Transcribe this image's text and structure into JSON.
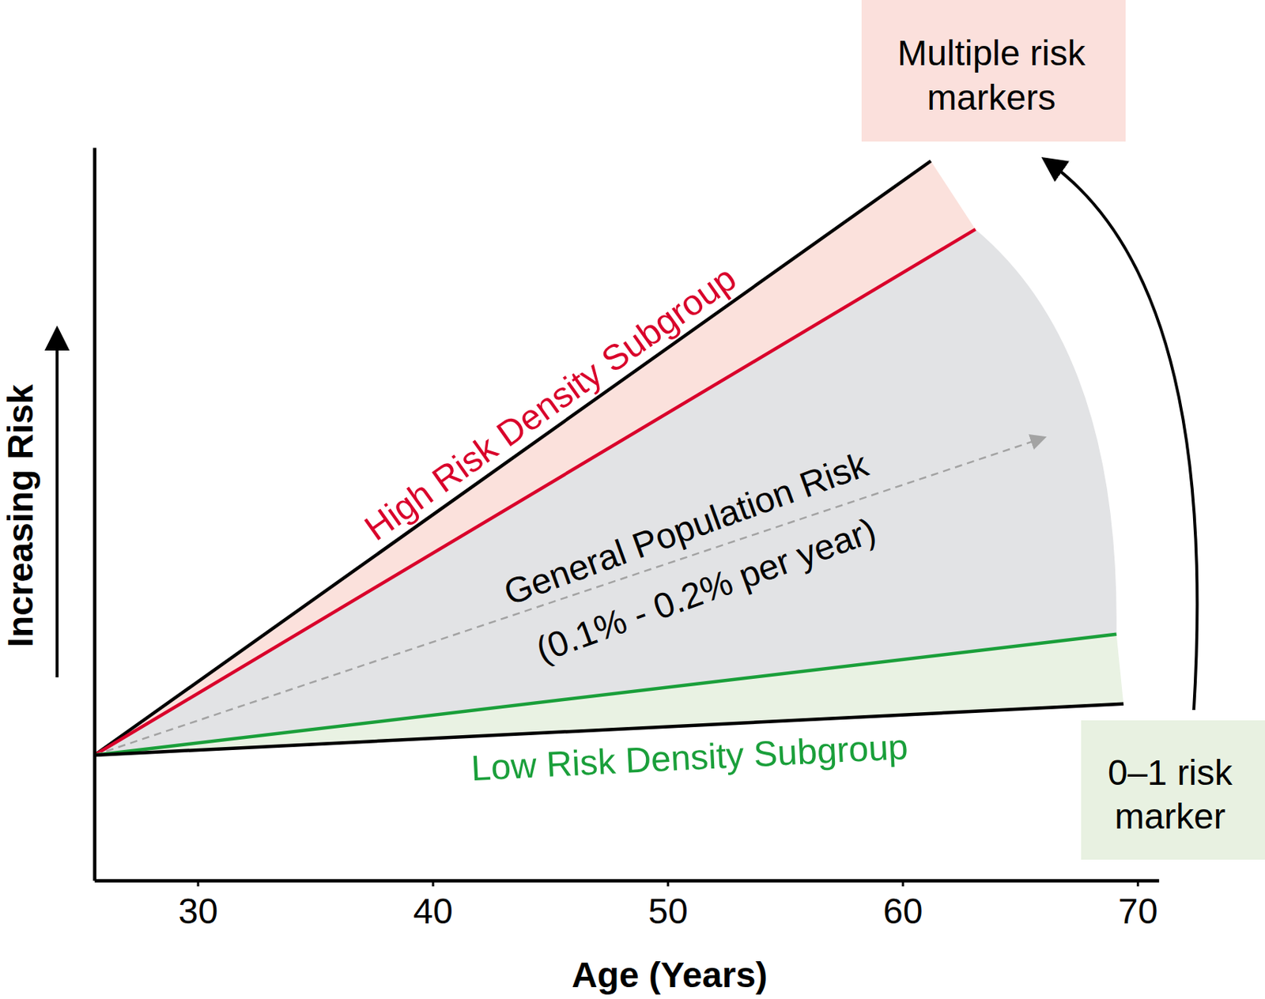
{
  "chart_data": {
    "type": "line",
    "x_label": "Age (Years)",
    "y_label": "Increasing Risk",
    "xlim": [
      25.6,
      70.9
    ],
    "xticks": [
      30,
      40,
      50,
      60,
      70
    ],
    "ylim": [
      0,
      103
    ],
    "yticks": [],
    "tick_labels": "x",
    "grid": false,
    "series": [
      {
        "color": "#000000",
        "x": [
          25.6,
          61.2
        ],
        "values": [
          17.6,
          101.1
        ]
      },
      {
        "name": "High Risk Density Subgroup",
        "color": "#d9002b",
        "x": [
          25.6,
          63.1
        ],
        "values": [
          17.6,
          91.5
        ]
      },
      {
        "name": "General Population Risk",
        "color": "#a3a3a3",
        "line_style": "dashed",
        "marker": "arrow",
        "x": [
          25.6,
          66.0
        ],
        "values": [
          17.6,
          62.2
        ]
      },
      {
        "name": "Low Risk Density Subgroup",
        "color": "#1a9f3a",
        "x": [
          25.6,
          69.1
        ],
        "values": [
          17.6,
          34.6
        ]
      },
      {
        "color": "#000000",
        "x": [
          25.6,
          69.4
        ],
        "values": [
          17.6,
          24.8
        ]
      }
    ],
    "annotations": [
      "(0.1% - 0.2% per year)",
      "Multiple risk markers",
      "0–1 risk marker"
    ]
  }
}
